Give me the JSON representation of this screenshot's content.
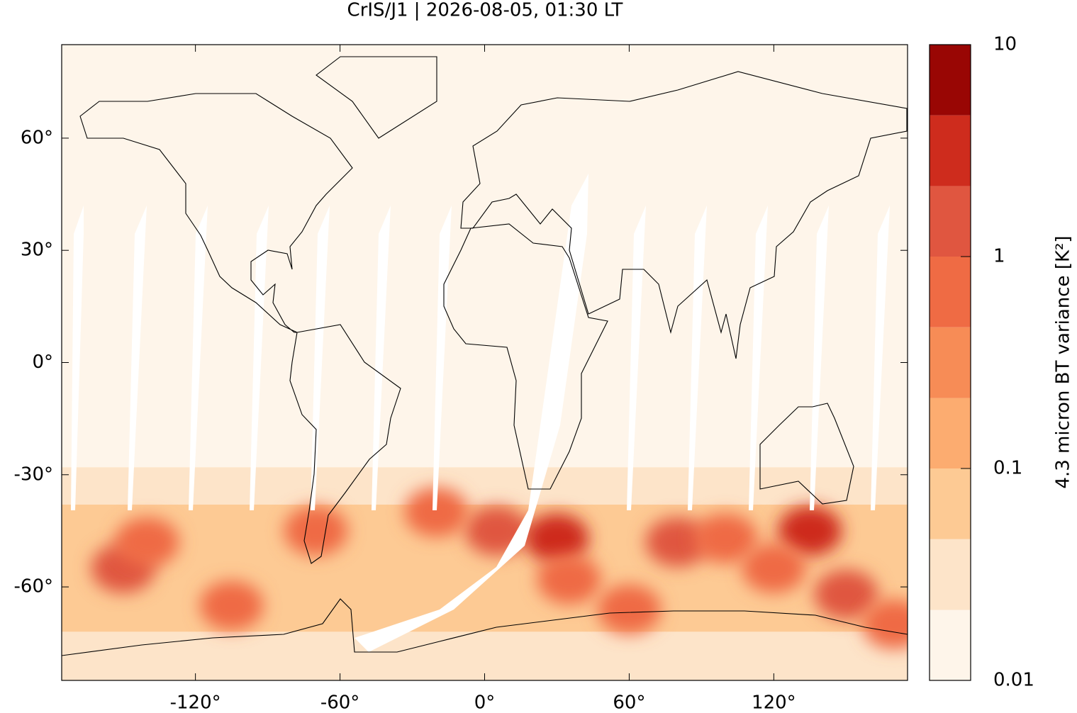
{
  "chart_data": {
    "type": "map",
    "title": "CrIS/J1 | 2026-08-05, 01:30 LT",
    "xlim": [
      -175.5,
      175.5
    ],
    "ylim": [
      -85,
      85
    ],
    "xticks": [
      {
        "value": -120,
        "label": "-120°"
      },
      {
        "value": -60,
        "label": "-60°"
      },
      {
        "value": 0,
        "label": "0°"
      },
      {
        "value": 60,
        "label": "60°"
      },
      {
        "value": 120,
        "label": "120°"
      }
    ],
    "yticks": [
      {
        "value": 60,
        "label": "60°"
      },
      {
        "value": 30,
        "label": "30°"
      },
      {
        "value": 0,
        "label": "0°"
      },
      {
        "value": -30,
        "label": "-30°"
      },
      {
        "value": -60,
        "label": "-60°"
      }
    ],
    "colorbar": {
      "label": "4.3 micron BT variance [K²]",
      "scale": "log",
      "lim": [
        0.01,
        10
      ],
      "ticks": [
        0.01,
        0.1,
        1,
        10
      ],
      "levels": [
        0.01,
        0.0215,
        0.0464,
        0.1,
        0.215,
        0.464,
        1,
        2.15,
        4.64,
        10
      ],
      "colors": [
        "#fef5ea",
        "#fde4c9",
        "#fdca94",
        "#fcac70",
        "#f78c56",
        "#ef6b44",
        "#e05640",
        "#ce2c1d",
        "#990604"
      ]
    },
    "zonal": {
      "lat_edges": [
        85,
        -28,
        -38,
        -72,
        -85
      ],
      "values": [
        0.013,
        0.03,
        0.06,
        0.04
      ]
    },
    "hotspots": {
      "lon": [
        -150,
        -140,
        -70,
        5,
        30,
        35,
        80,
        100,
        135,
        150,
        -105,
        -20,
        60,
        120,
        170
      ],
      "lat": [
        -55,
        -48,
        -45,
        -45,
        -47,
        -58,
        -48,
        -47,
        -45,
        -62,
        -65,
        -40,
        -66,
        -55,
        -70
      ],
      "value": [
        1.5,
        0.8,
        0.5,
        2,
        3,
        0.8,
        1,
        0.8,
        3,
        1,
        0.6,
        0.5,
        0.6,
        0.5,
        0.5
      ]
    }
  }
}
